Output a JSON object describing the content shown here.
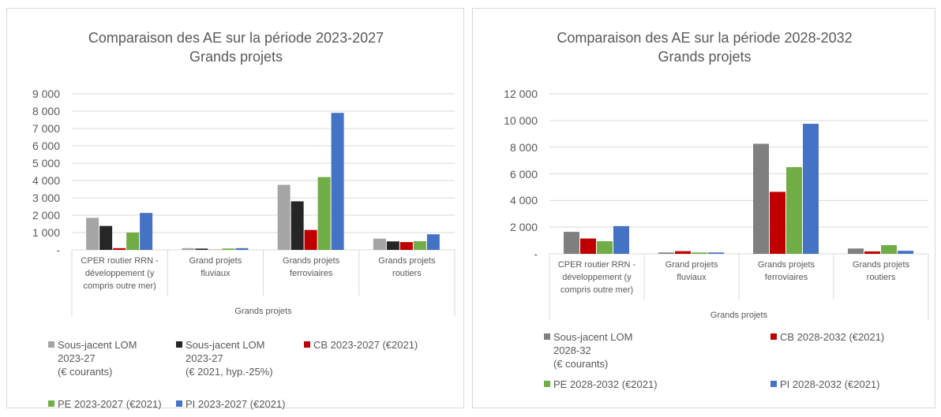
{
  "chart_data": [
    {
      "type": "bar",
      "title": "Comparaison des AE sur la période 2023-2027\nGrands projets",
      "xlabel": "Grands projets",
      "categories": [
        "CPER routier RRN -\ndéveloppement (y\ncompris outre mer)",
        "Grand projets\nfluviaux",
        "Grands projets\nferroviaires",
        "Grands projets\nroutiers"
      ],
      "series": [
        {
          "name": "Sous-jacent LOM\n2023-27\n(€ courants)",
          "color": "#a5a5a5",
          "values": [
            1850,
            100,
            3750,
            650
          ]
        },
        {
          "name": "Sous-jacent LOM\n2023-27\n(€ 2021, hyp.-25%)",
          "color": "#262626",
          "values": [
            1380,
            75,
            2800,
            490
          ]
        },
        {
          "name": "CB 2023-2027 (€2021)",
          "color": "#c00000",
          "values": [
            100,
            10,
            1150,
            450
          ]
        },
        {
          "name": "PE 2023-2027 (€2021)",
          "color": "#70ad47",
          "values": [
            1000,
            80,
            4200,
            500
          ]
        },
        {
          "name": "PI 2023-2027 (€2021)",
          "color": "#4472c4",
          "values": [
            2130,
            100,
            7900,
            900
          ]
        }
      ],
      "ylim": [
        0,
        9000
      ],
      "yticks": [
        {
          "value": 0,
          "label": "-"
        },
        {
          "value": 1000,
          "label": "1 000"
        },
        {
          "value": 2000,
          "label": "2 000"
        },
        {
          "value": 3000,
          "label": "3 000"
        },
        {
          "value": 4000,
          "label": "4 000"
        },
        {
          "value": 5000,
          "label": "5 000"
        },
        {
          "value": 6000,
          "label": "6 000"
        },
        {
          "value": 7000,
          "label": "7 000"
        },
        {
          "value": 8000,
          "label": "8 000"
        },
        {
          "value": 9000,
          "label": "9 000"
        }
      ],
      "grid": true
    },
    {
      "type": "bar",
      "title": "Comparaison des AE sur la période 2028-2032\nGrands projets",
      "xlabel": "Grands projets",
      "categories": [
        "CPER routier RRN -\ndéveloppement (y\ncompris outre mer)",
        "Grand projets\nfluviaux",
        "Grands projets\nferroviaires",
        "Grands projets\nroutiers"
      ],
      "series": [
        {
          "name": "Sous-jacent LOM\n2028-32\n(€ courants)",
          "color": "#7f7f7f",
          "values": [
            1650,
            100,
            8250,
            400
          ]
        },
        {
          "name": "CB 2028-2032 (€2021)",
          "color": "#c00000",
          "values": [
            1150,
            200,
            4650,
            180
          ]
        },
        {
          "name": "PE 2028-2032 (€2021)",
          "color": "#70ad47",
          "values": [
            950,
            100,
            6500,
            650
          ]
        },
        {
          "name": "PI 2028-2032 (€2021)",
          "color": "#4472c4",
          "values": [
            2080,
            100,
            9750,
            230
          ]
        }
      ],
      "ylim": [
        0,
        12000
      ],
      "yticks": [
        {
          "value": 0,
          "label": "-"
        },
        {
          "value": 2000,
          "label": "2 000"
        },
        {
          "value": 4000,
          "label": "4 000"
        },
        {
          "value": 6000,
          "label": "6 000"
        },
        {
          "value": 8000,
          "label": "8 000"
        },
        {
          "value": 10000,
          "label": "10 000"
        },
        {
          "value": 12000,
          "label": "12 000"
        }
      ],
      "grid": true
    }
  ]
}
